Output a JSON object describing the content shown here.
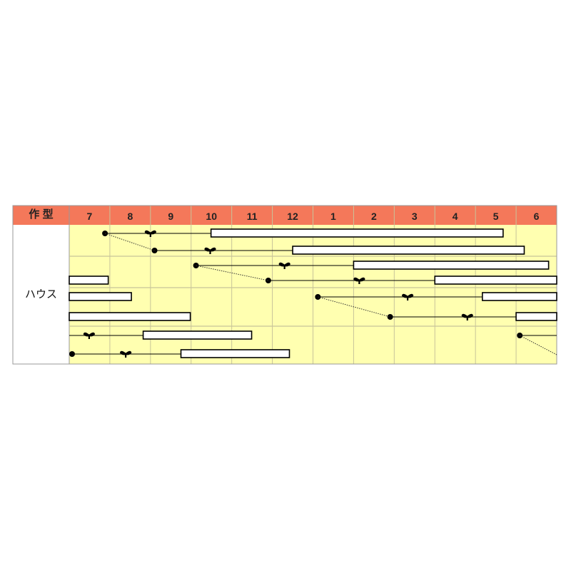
{
  "chart_data": {
    "type": "gantt",
    "header_label": "作 型",
    "months": [
      "7",
      "8",
      "9",
      "10",
      "11",
      "12",
      "1",
      "2",
      "3",
      "4",
      "5",
      "6"
    ],
    "row_group_label": "ハウス",
    "x_unit": "months from start of July",
    "colors": {
      "header": "#f4785a",
      "body": "#ffffb0",
      "label_bg": "#ffffff",
      "grid": "#c8c49a",
      "bar_fill": "#ffffff",
      "mark": "#000000"
    },
    "legend_marks": {
      "dot": "sowing",
      "sprout": "planting",
      "bar": "harvest"
    },
    "groups": [
      {
        "rows": [
          {
            "sow": 0.88,
            "plant": 2.0,
            "harvest": [
              [
                3.49,
                10.68
              ]
            ]
          },
          {
            "sow": 2.1,
            "plant": 3.47,
            "harvest": [
              [
                5.5,
                11.2
              ]
            ]
          }
        ]
      },
      {
        "rows": [
          {
            "sow": 3.12,
            "plant": 5.3,
            "harvest": [
              [
                7.0,
                11.8
              ]
            ]
          },
          {
            "sow": 4.9,
            "plant": 7.14,
            "harvest": [
              [
                0,
                0.96
              ],
              [
                9.0,
                12
              ]
            ]
          }
        ]
      },
      {
        "rows": [
          {
            "sow": 6.12,
            "plant": 8.33,
            "harvest": [
              [
                0,
                1.53
              ],
              [
                10.17,
                12
              ]
            ]
          },
          {
            "sow": 7.9,
            "plant": 9.8,
            "harvest": [
              [
                0,
                2.98
              ],
              [
                11.0,
                12
              ]
            ]
          }
        ]
      },
      {
        "rows": [
          {
            "sow": 11.09,
            "plant": 0.49,
            "harvest": [
              [
                1.82,
                4.49
              ]
            ],
            "line_from_start": true
          },
          {
            "sow": 0.07,
            "plant": 1.39,
            "harvest": [
              [
                2.75,
                5.42
              ]
            ]
          }
        ]
      }
    ]
  }
}
